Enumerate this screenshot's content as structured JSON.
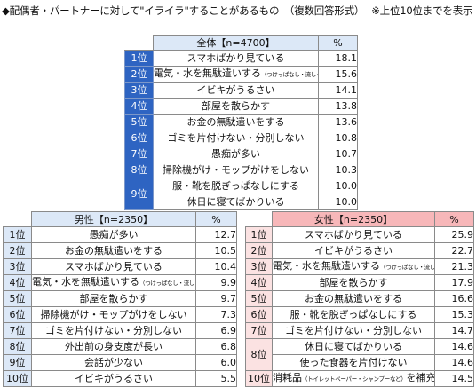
{
  "title": "◆配偶者・パートナーに対して\"イライラ\"することがあるもの　（複数回答形式）",
  "note": "※上位10位までを表示",
  "chart_data": [
    {
      "type": "table",
      "group": "全体【n=4700】",
      "value_header": "%",
      "rows": [
        {
          "rank": "1位",
          "label": "スマホばかり見ている",
          "value": "18.1"
        },
        {
          "rank": "2位",
          "label": "電気・水を無駄遣いする",
          "sub": "（つけっぱなし・流しっぱなし）",
          "value": "15.6"
        },
        {
          "rank": "3位",
          "label": "イビキがうるさい",
          "value": "14.1"
        },
        {
          "rank": "4位",
          "label": "部屋を散らかす",
          "value": "13.8"
        },
        {
          "rank": "5位",
          "label": "お金の無駄遣いをする",
          "value": "13.6"
        },
        {
          "rank": "6位",
          "label": "ゴミを片付けない・分別しない",
          "value": "10.8"
        },
        {
          "rank": "7位",
          "label": "愚痴が多い",
          "value": "10.7"
        },
        {
          "rank": "8位",
          "label": "掃除機がけ・モップがけをしない",
          "value": "10.3"
        },
        {
          "rank": "9位",
          "label": "服・靴を脱ぎっぱなしにする",
          "value": "10.0"
        },
        {
          "rank": "9位",
          "label": "休日に寝てばかりいる",
          "value": "10.0"
        }
      ]
    },
    {
      "type": "table",
      "group": "男性【n=2350】",
      "value_header": "%",
      "rows": [
        {
          "rank": "1位",
          "label": "愚痴が多い",
          "value": "12.7"
        },
        {
          "rank": "2位",
          "label": "お金の無駄遣いをする",
          "value": "10.5"
        },
        {
          "rank": "3位",
          "label": "スマホばかり見ている",
          "value": "10.4"
        },
        {
          "rank": "4位",
          "label": "電気・水を無駄遣いする",
          "sub": "（つけっぱなし・流しっぱなし）",
          "value": "9.9"
        },
        {
          "rank": "5位",
          "label": "部屋を散らかす",
          "value": "9.7"
        },
        {
          "rank": "6位",
          "label": "掃除機がけ・モップがけをしない",
          "value": "7.3"
        },
        {
          "rank": "7位",
          "label": "ゴミを片付けない・分別しない",
          "value": "6.9"
        },
        {
          "rank": "8位",
          "label": "外出前の身支度が長い",
          "value": "6.8"
        },
        {
          "rank": "9位",
          "label": "会話が少ない",
          "value": "6.0"
        },
        {
          "rank": "10位",
          "label": "イビキがうるさい",
          "value": "5.5"
        }
      ]
    },
    {
      "type": "table",
      "group": "女性【n=2350】",
      "value_header": "%",
      "rows": [
        {
          "rank": "1位",
          "label": "スマホばかり見ている",
          "value": "25.9"
        },
        {
          "rank": "2位",
          "label": "イビキがうるさい",
          "value": "22.7"
        },
        {
          "rank": "3位",
          "label": "電気・水を無駄遣いする",
          "sub": "（つけっぱなし・流しっぱなし）",
          "value": "21.3"
        },
        {
          "rank": "4位",
          "label": "部屋を散らかす",
          "value": "17.9"
        },
        {
          "rank": "5位",
          "label": "お金の無駄遣いをする",
          "value": "16.6"
        },
        {
          "rank": "6位",
          "label": "服・靴を脱ぎっぱなしにする",
          "value": "15.3"
        },
        {
          "rank": "7位",
          "label": "ゴミを片付けない・分別しない",
          "value": "14.7"
        },
        {
          "rank": "8位",
          "label": "休日に寝てばかりいる",
          "value": "14.6"
        },
        {
          "rank": "8位",
          "label": "使った食器を片付けない",
          "value": "14.6"
        },
        {
          "rank": "10位",
          "label": "消耗品",
          "sub": "（トイレットペーパー・シャンプーなど）",
          "label_suffix": "を補充しない",
          "value": "14.5"
        }
      ]
    }
  ]
}
